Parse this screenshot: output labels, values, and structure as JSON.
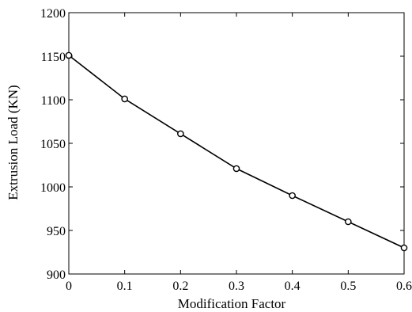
{
  "chart_data": {
    "type": "line",
    "title": "",
    "xlabel": "Modification Factor",
    "ylabel": "Extrusion Load (KN)",
    "xlim": [
      0,
      0.6
    ],
    "ylim": [
      900,
      1200
    ],
    "x_ticks": [
      "0",
      "0.1",
      "0.2",
      "0.3",
      "0.4",
      "0.5",
      "0.6"
    ],
    "y_ticks": [
      "900",
      "950",
      "1000",
      "1050",
      "1100",
      "1150",
      "1200"
    ],
    "grid": false,
    "legend": "none",
    "series": [
      {
        "marker": "open-circle",
        "color": "#000000",
        "x": [
          0,
          0.1,
          0.2,
          0.3,
          0.4,
          0.5,
          0.6
        ],
        "y": [
          1151,
          1101,
          1061,
          1021,
          990,
          960,
          930
        ]
      }
    ]
  }
}
